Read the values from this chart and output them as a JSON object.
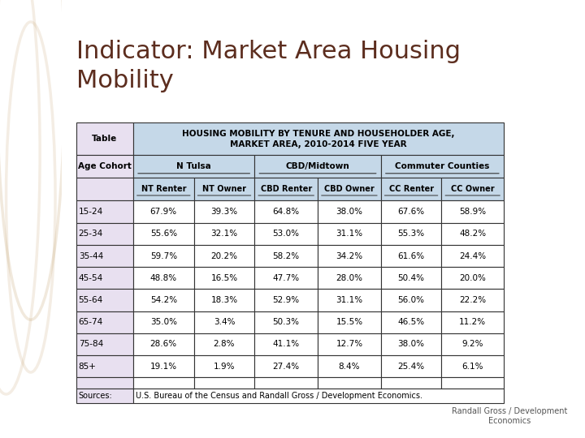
{
  "title": "Indicator: Market Area Housing\nMobility",
  "title_color": "#5C2D1E",
  "bg_color": "#FFFFFF",
  "left_panel_color": "#E8D9B5",
  "table_header_bg": "#C5D8E8",
  "table_label_bg": "#E8E0F0",
  "table_border_color": "#333333",
  "table_title": "HOUSING MOBILITY BY TENURE AND HOUSEHOLDER AGE,\nMARKET AREA, 2010-2014 FIVE YEAR",
  "col_groups": [
    "N Tulsa",
    "CBD/Midtown",
    "Commuter Counties"
  ],
  "col_headers": [
    "NT Renter",
    "NT Owner",
    "CBD Renter",
    "CBD Owner",
    "CC Renter",
    "CC Owner"
  ],
  "row_labels": [
    "15-24",
    "25-34",
    "35-44",
    "45-54",
    "55-64",
    "65-74",
    "75-84",
    "85+"
  ],
  "data": [
    [
      "67.9%",
      "39.3%",
      "64.8%",
      "38.0%",
      "67.6%",
      "58.9%"
    ],
    [
      "55.6%",
      "32.1%",
      "53.0%",
      "31.1%",
      "55.3%",
      "48.2%"
    ],
    [
      "59.7%",
      "20.2%",
      "58.2%",
      "34.2%",
      "61.6%",
      "24.4%"
    ],
    [
      "48.8%",
      "16.5%",
      "47.7%",
      "28.0%",
      "50.4%",
      "20.0%"
    ],
    [
      "54.2%",
      "18.3%",
      "52.9%",
      "31.1%",
      "56.0%",
      "22.2%"
    ],
    [
      "35.0%",
      "3.4%",
      "50.3%",
      "15.5%",
      "46.5%",
      "11.2%"
    ],
    [
      "28.6%",
      "2.8%",
      "41.1%",
      "12.7%",
      "38.0%",
      "9.2%"
    ],
    [
      "19.1%",
      "1.9%",
      "27.4%",
      "8.4%",
      "25.4%",
      "6.1%"
    ]
  ],
  "sources_label": "Sources:",
  "sources_text": "U.S. Bureau of the Census and Randall Gross / Development Economics.",
  "footer_text": "Randall Gross / Development\nEconomics",
  "footer_color": "#555555"
}
